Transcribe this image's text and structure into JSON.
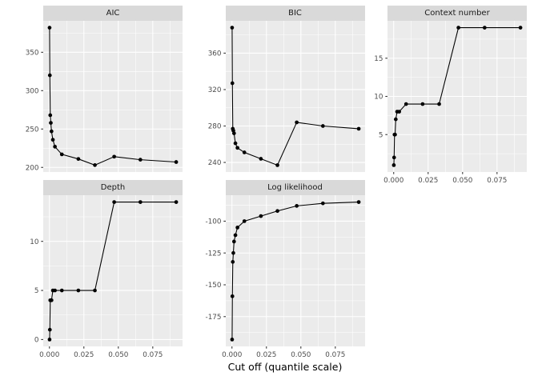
{
  "figure": {
    "xlabel": "Cut off (quantile scale)",
    "colors": {
      "background": "#FFFFFF",
      "panel_background": "#EBEBEB",
      "strip_background": "#D9D9D9",
      "strip_text": "#1A1A1A",
      "grid": "#FFFFFF",
      "axis_text": "#4D4D4D",
      "tick": "#333333",
      "line": "#000000",
      "point": "#000000"
    }
  },
  "chart_data": {
    "type": "line",
    "layout": "faceted small multiples, 2 rows x 3 cols, shared x scale, free y scales",
    "title": "",
    "x_label": "Cut off (quantile scale)",
    "legend": "none",
    "grid": "white major and minor gridlines on grey panels",
    "x": [
      0.0001,
      0.0003,
      0.0006,
      0.001,
      0.0015,
      0.0025,
      0.004,
      0.009,
      0.021,
      0.033,
      0.047,
      0.066,
      0.092
    ],
    "xlim": [
      -0.0045,
      0.0966
    ],
    "x_ticks": {
      "values": [
        0,
        0.025,
        0.05,
        0.075
      ],
      "labels": [
        "0.000",
        "0.025",
        "0.050",
        "0.075"
      ]
    },
    "facets": [
      {
        "title": "AIC",
        "values": [
          382,
          320,
          268,
          258,
          247,
          236,
          227,
          217,
          211,
          203,
          214,
          210,
          207
        ],
        "y_ticks": [
          200,
          250,
          300,
          350
        ],
        "ylim": [
          194,
          391
        ],
        "x_axis": false
      },
      {
        "title": "BIC",
        "values": [
          388,
          327,
          277,
          275,
          272,
          261,
          256,
          251,
          244,
          237,
          284,
          280,
          277
        ],
        "y_ticks": [
          240,
          280,
          320,
          360
        ],
        "ylim": [
          229.5,
          395.5
        ],
        "x_axis": false
      },
      {
        "title": "Context number",
        "values": [
          1,
          2,
          5,
          5,
          7,
          8,
          8,
          9,
          9,
          9,
          19,
          19,
          19
        ],
        "y_ticks": [
          5,
          10,
          15
        ],
        "ylim": [
          0.1,
          19.9
        ],
        "x_axis": true
      },
      {
        "title": "Depth",
        "values": [
          0,
          1,
          4,
          4,
          4,
          5,
          5,
          5,
          5,
          5,
          14,
          14,
          14
        ],
        "y_ticks": [
          0,
          5,
          10
        ],
        "ylim": [
          -0.7,
          14.7
        ],
        "x_axis": true
      },
      {
        "title": "Log likelihood",
        "values": [
          -193,
          -159,
          -132,
          -125,
          -116,
          -111,
          -105,
          -100,
          -96,
          -92,
          -88,
          -86,
          -85
        ],
        "y_ticks": [
          -175,
          -150,
          -125,
          -100
        ],
        "ylim": [
          -198.4,
          -79.6
        ],
        "x_axis": true
      }
    ]
  }
}
